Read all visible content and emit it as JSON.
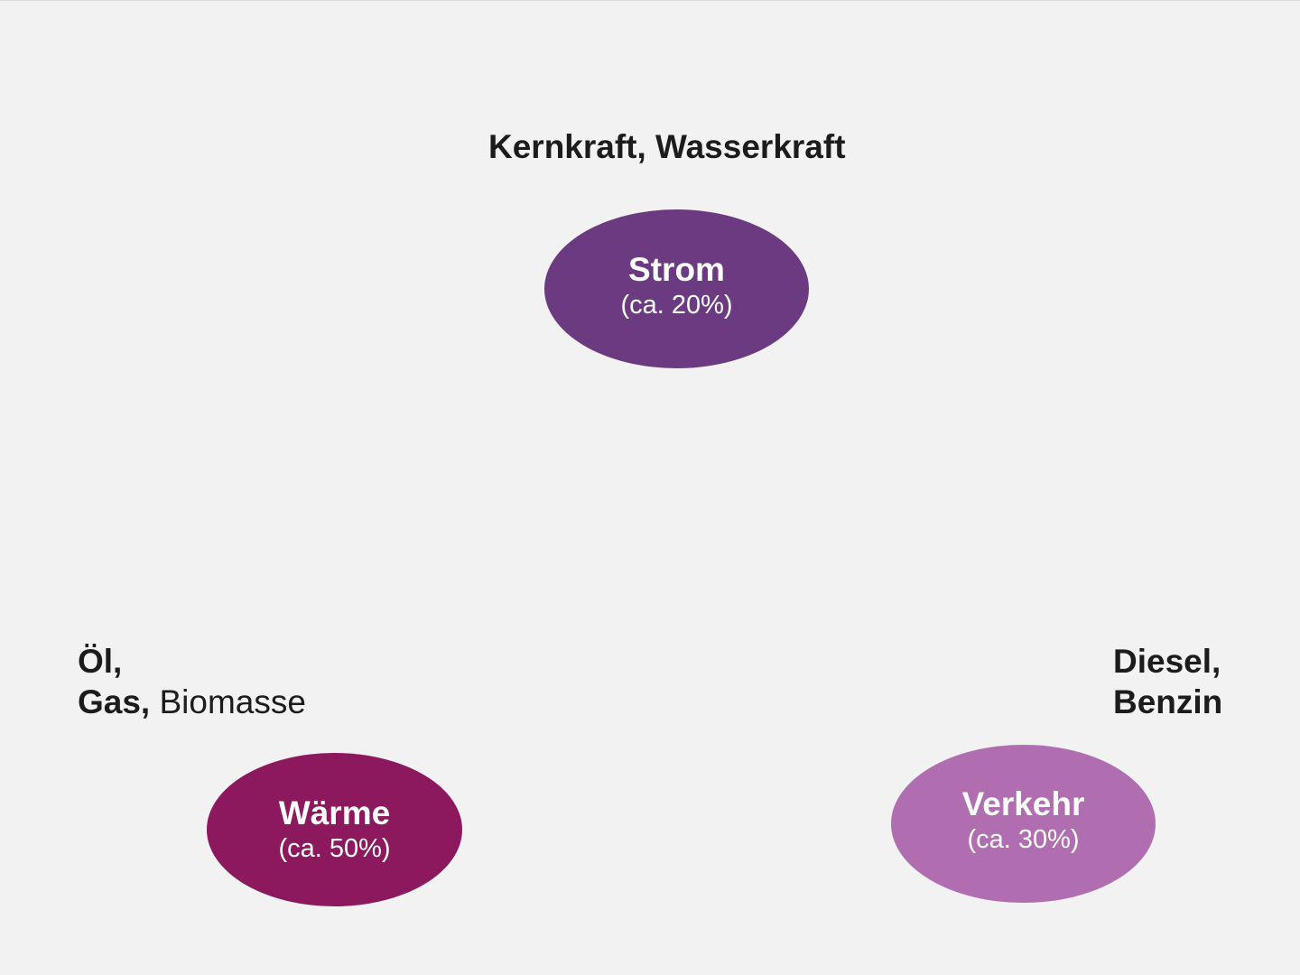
{
  "colors": {
    "background": "#f2f2f2",
    "strom": "#6b3a80",
    "waerme": "#8c195e",
    "verkehr": "#b06eb1",
    "text": "#1c1c1c",
    "node_text": "#ffffff"
  },
  "nodes": {
    "strom": {
      "name": "Strom",
      "share": "(ca. 20%)",
      "sources": "Kernkraft, Wasserkraft"
    },
    "waerme": {
      "name": "Wärme",
      "share": "(ca. 50%)",
      "sources_line1": "Öl,",
      "sources_line2_bold": "Gas,",
      "sources_line2_normal": "Biomasse"
    },
    "verkehr": {
      "name": "Verkehr",
      "share": "(ca. 30%)",
      "sources_line1": "Diesel,",
      "sources_line2": "Benzin"
    }
  }
}
